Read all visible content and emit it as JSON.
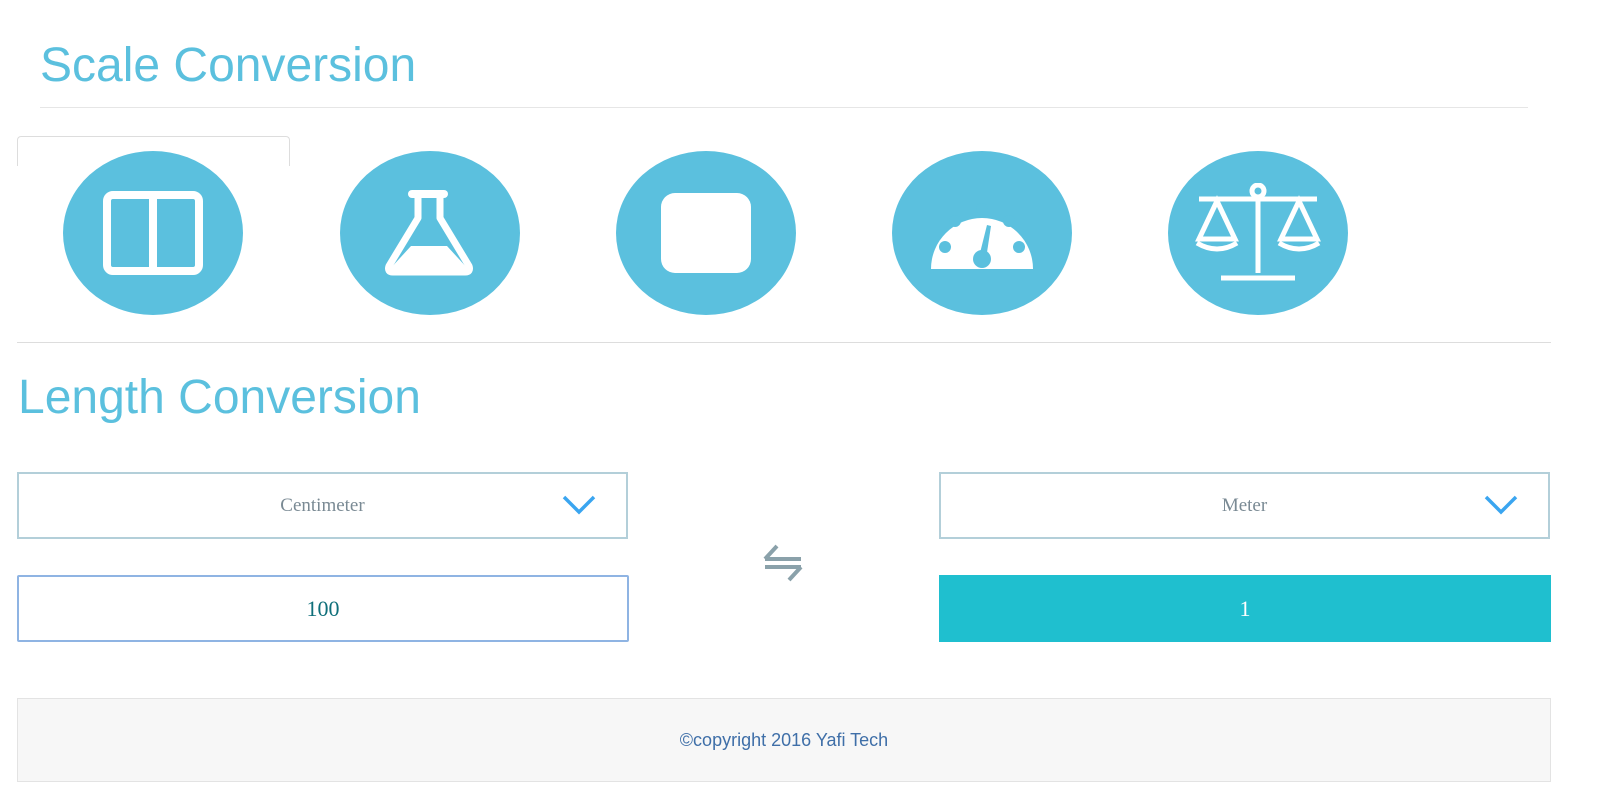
{
  "header": {
    "title": "Scale Conversion"
  },
  "categories": [
    {
      "icon": "columns-icon",
      "name": "length"
    },
    {
      "icon": "flask-icon",
      "name": "volume"
    },
    {
      "icon": "square-icon",
      "name": "area"
    },
    {
      "icon": "speedometer-icon",
      "name": "speed"
    },
    {
      "icon": "balance-scale-icon",
      "name": "weight"
    }
  ],
  "converter": {
    "title": "Length Conversion",
    "from_unit": "Centimeter",
    "to_unit": "Meter",
    "input_value": "100",
    "result_value": "1"
  },
  "colors": {
    "accent": "#5bc0de",
    "result": "#1fbfcf",
    "chevron": "#3aa5f0"
  },
  "footer": {
    "text": "©copyright 2016 Yafi Tech"
  }
}
